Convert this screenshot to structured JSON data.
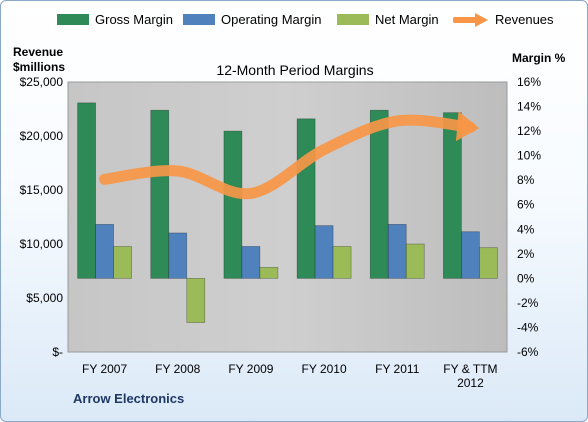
{
  "chart_data": {
    "type": "bar",
    "title": "12-Month Period Margins",
    "left_axis_label": [
      "Revenue",
      "$millions"
    ],
    "right_axis_label": "Margin %",
    "footer": "Arrow Electronics",
    "categories": [
      [
        "FY 2007"
      ],
      [
        "FY 2008"
      ],
      [
        "FY 2009"
      ],
      [
        "FY 2010"
      ],
      [
        "FY 2011"
      ],
      [
        "FY & TTM",
        "2012"
      ]
    ],
    "y_left": {
      "min": 0,
      "max": 25000,
      "step": 5000,
      "ticks": [
        "$-",
        "$5,000",
        "$10,000",
        "$15,000",
        "$20,000",
        "$25,000"
      ]
    },
    "y_right": {
      "min": -6,
      "max": 16,
      "step": 2,
      "ticks": [
        "-6%",
        "-4%",
        "-2%",
        "0%",
        "2%",
        "4%",
        "6%",
        "8%",
        "10%",
        "12%",
        "14%",
        "16%"
      ]
    },
    "series": [
      {
        "name": "Gross Margin",
        "axis": "right",
        "type": "bar",
        "color": "#2e8b57",
        "values": [
          14.3,
          13.7,
          12.0,
          13.0,
          13.7,
          13.5
        ]
      },
      {
        "name": "Operating Margin",
        "axis": "right",
        "type": "bar",
        "color": "#4f81bd",
        "values": [
          4.4,
          3.7,
          2.6,
          4.3,
          4.4,
          3.8
        ]
      },
      {
        "name": "Net Margin",
        "axis": "right",
        "type": "bar",
        "color": "#9bbb59",
        "values": [
          2.6,
          -3.6,
          0.9,
          2.6,
          2.8,
          2.5
        ]
      },
      {
        "name": "Revenues",
        "axis": "left",
        "type": "line",
        "color": "#f79646",
        "values": [
          15985,
          16761,
          14684,
          18745,
          21390,
          20800
        ]
      }
    ]
  }
}
